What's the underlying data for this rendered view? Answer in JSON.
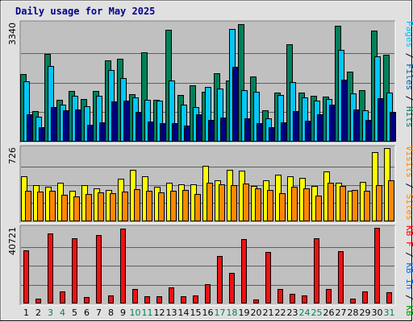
{
  "chart_data": {
    "title": "Daily usage for May 2025",
    "type": "bar",
    "categories": [
      "1",
      "2",
      "3",
      "4",
      "5",
      "6",
      "7",
      "8",
      "9",
      "10",
      "11",
      "12",
      "13",
      "14",
      "15",
      "16",
      "17",
      "18",
      "19",
      "20",
      "21",
      "22",
      "23",
      "24",
      "25",
      "26",
      "27",
      "28",
      "29",
      "30",
      "31"
    ],
    "weekend_days": [
      "3",
      "4",
      "10",
      "11",
      "17",
      "18",
      "24",
      "25",
      "31"
    ],
    "panels": [
      {
        "name": "hits-files-pages",
        "ymax_label": "3340",
        "ymax": 3340,
        "grid": true,
        "side_labels": [
          {
            "text": "Pages",
            "color": "#00c0ff"
          },
          {
            "text": " / ",
            "color": "#000000"
          },
          {
            "text": "Files",
            "color": "#0060a0"
          },
          {
            "text": " / ",
            "color": "#000000"
          },
          {
            "text": "Hits",
            "color": "#008060"
          }
        ],
        "series": [
          {
            "name": "Hits",
            "color": "#00805c",
            "values": [
              1900,
              860,
              2470,
              1180,
              1430,
              1210,
              1430,
              2290,
              2330,
              1330,
              2520,
              1180,
              3150,
              1310,
              1580,
              1420,
              1920,
              1720,
              3310,
              1850,
              890,
              1380,
              2740,
              1380,
              1300,
              1280,
              3270,
              1970,
              1460,
              3130,
              2460
            ]
          },
          {
            "name": "Files",
            "color": "#00c8f8",
            "values": [
              1700,
              700,
              2130,
              1050,
              1300,
              1000,
              1300,
              2020,
              1800,
              1240,
              1180,
              1160,
              1720,
              1040,
              980,
              1550,
              1490,
              3180,
              1460,
              1420,
              670,
              1310,
              1680,
              1250,
              1170,
              1200,
              2580,
              1370,
              890,
              2410,
              1380
            ]
          },
          {
            "name": "Pages",
            "color": "#000080",
            "values": [
              780,
              420,
              980,
              880,
              910,
              480,
              540,
              1130,
              1170,
              840,
              560,
              530,
              520,
              460,
              780,
              620,
              690,
              2120,
              660,
              520,
              410,
              540,
              870,
              600,
              770,
              1050,
              1750,
              920,
              610,
              1230,
              830
            ]
          }
        ]
      },
      {
        "name": "visits-sites",
        "ymax_label": "726",
        "ymax": 726,
        "grid": true,
        "side_labels": [
          {
            "text": "Visits",
            "color": "#ff8800"
          },
          {
            "text": " / ",
            "color": "#000000"
          },
          {
            "text": "Sites",
            "color": "#ff8800"
          }
        ],
        "series": [
          {
            "name": "Visits",
            "color": "#ffff00",
            "values": [
              450,
              360,
              345,
              380,
              300,
              360,
              325,
              310,
              420,
              510,
              450,
              340,
              380,
              365,
              365,
              550,
              410,
              510,
              505,
              355,
              410,
              465,
              445,
              430,
              355,
              495,
              380,
              300,
              390,
              685,
              725
            ]
          },
          {
            "name": "Sites",
            "color": "#ff8800",
            "values": [
              305,
              295,
              300,
              265,
              245,
              270,
              290,
              280,
              295,
              320,
              300,
              290,
              305,
              310,
              270,
              385,
              370,
              360,
              375,
              330,
              310,
              280,
              340,
              330,
              255,
              380,
              350,
              310,
              300,
              360,
              410
            ]
          }
        ]
      },
      {
        "name": "kbytes",
        "ymax_label": "40721",
        "ymax": 40721,
        "grid": true,
        "side_labels": [
          {
            "text": "KB F",
            "color": "#ff0000"
          },
          {
            "text": " / ",
            "color": "#000000"
          },
          {
            "text": "KB In",
            "color": "#0070ff"
          },
          {
            "text": " / ",
            "color": "#000000"
          },
          {
            "text": "KB Out",
            "color": "#00a000"
          }
        ],
        "series": [
          {
            "name": "KB F",
            "color": "#ee1111",
            "values": [
              28700,
              2600,
              37800,
              6500,
              34900,
              3400,
              37000,
              4400,
              40100,
              7600,
              4100,
              3900,
              8800,
              3900,
              4300,
              10600,
              25700,
              16400,
              34600,
              2300,
              27700,
              7600,
              5000,
              4500,
              35300,
              7600,
              28000,
              2400,
              6400,
              40700,
              6000
            ]
          }
        ]
      }
    ]
  }
}
